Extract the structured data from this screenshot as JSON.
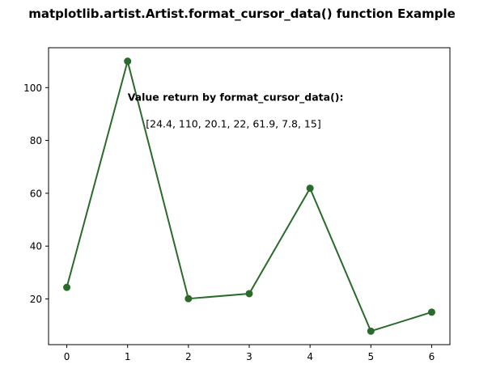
{
  "chart_data": {
    "type": "line",
    "title": "matplotlib.artist.Artist.format_cursor_data() function Example",
    "xlabel": "",
    "ylabel": "",
    "x": [
      0,
      1,
      2,
      3,
      4,
      5,
      6
    ],
    "series": [
      {
        "values": [
          24.4,
          110,
          20.1,
          22,
          61.9,
          7.8,
          15
        ],
        "color": "#2a6a2a",
        "marker": "circle"
      }
    ],
    "xlim": [
      -0.3,
      6.3
    ],
    "ylim": [
      2.7,
      115.1
    ],
    "xticks": [
      0,
      1,
      2,
      3,
      4,
      5,
      6
    ],
    "yticks": [
      20,
      40,
      60,
      80,
      100
    ],
    "grid": false,
    "annotations": [
      {
        "text": "Value return by format_cursor_data():",
        "bold": true,
        "x": 1.0,
        "y": 95
      },
      {
        "text": "[24.4, 110, 20.1, 22, 61.9, 7.8, 15]",
        "bold": false,
        "x": 1.3,
        "y": 85
      }
    ]
  }
}
